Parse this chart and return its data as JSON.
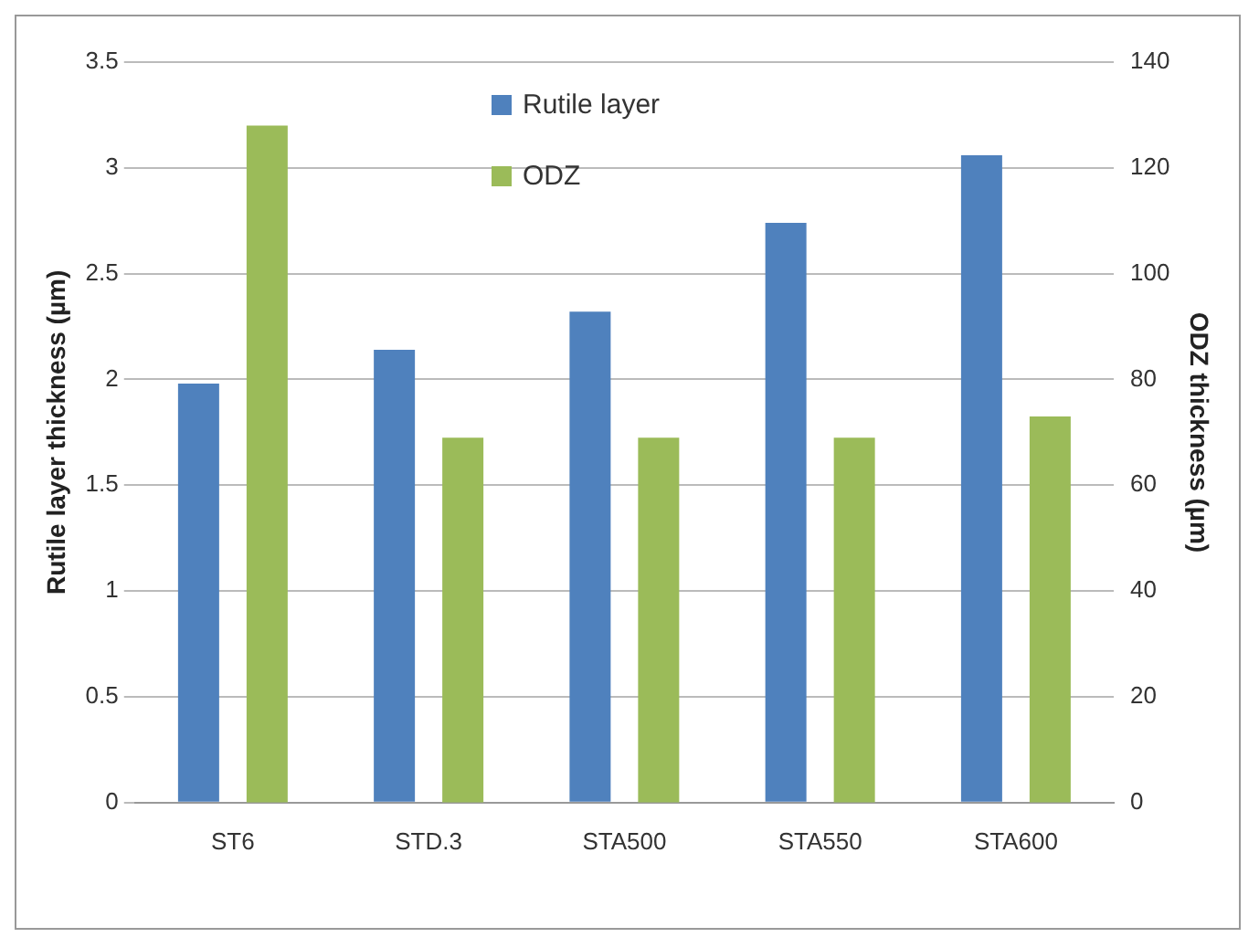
{
  "chart_data": {
    "type": "bar",
    "categories": [
      "ST6",
      "STD.3",
      "STA500",
      "STA550",
      "STA600"
    ],
    "series": [
      {
        "name": "Rutile layer",
        "color": "#4f81bd",
        "values": [
          1.98,
          2.14,
          2.32,
          2.74,
          3.06
        ]
      },
      {
        "name": "ODZ",
        "color": "#9bbb59",
        "values": [
          128,
          69,
          69,
          69,
          73
        ],
        "axis": "y2"
      }
    ],
    "ylabel": "Rutile layer thickness (µm)",
    "y2label": "ODZ thickness (µm)",
    "ylim": [
      0,
      3.5
    ],
    "yticks": [
      0,
      0.5,
      1,
      1.5,
      2,
      2.5,
      3,
      3.5
    ],
    "y2lim": [
      0,
      140
    ],
    "y2ticks": [
      0,
      20,
      40,
      60,
      80,
      100,
      120,
      140
    ],
    "grid": "y",
    "legend": "top"
  }
}
